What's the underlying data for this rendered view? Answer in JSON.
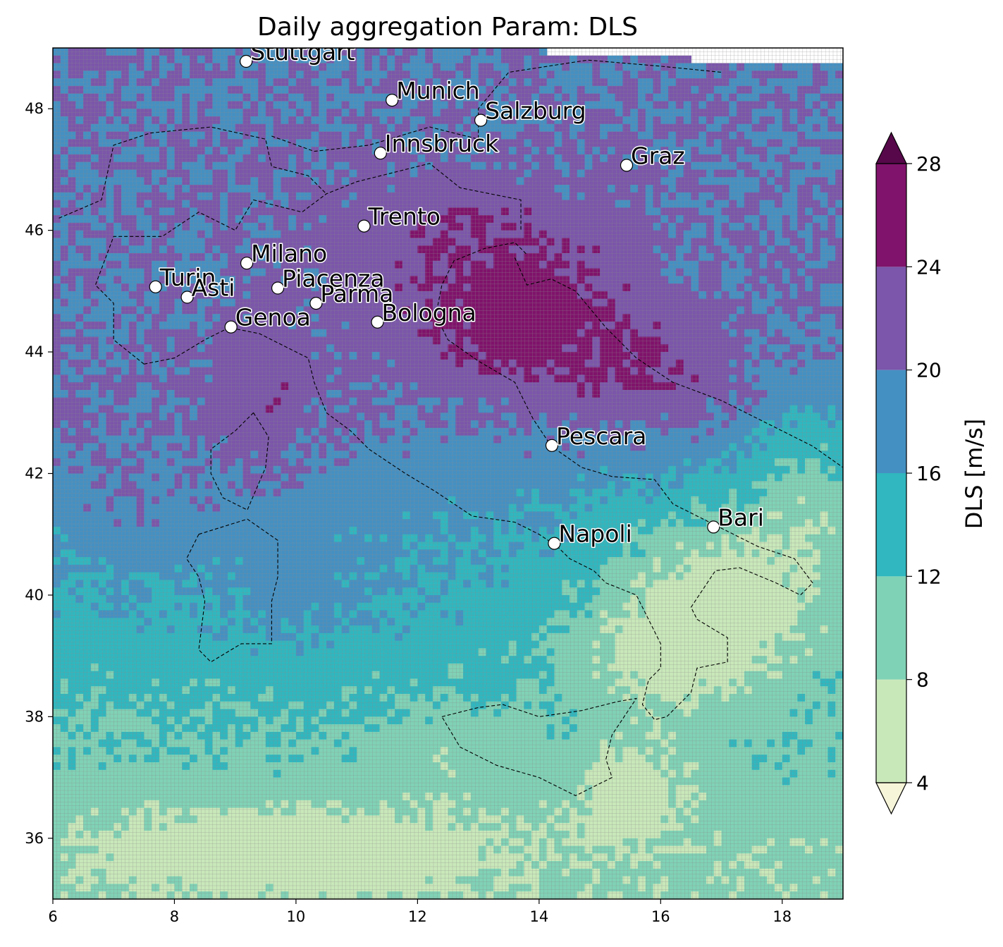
{
  "title": "Daily aggregation Param: DLS",
  "colors": {
    "band_4_8": "#c9e8ba",
    "band_8_12": "#80d2b6",
    "band_12_16": "#30b7bf",
    "band_16_20": "#4590c2",
    "band_20_24": "#7b56aa",
    "band_24_28": "#80136b",
    "under": "#f7f5d9",
    "over": "#56084a",
    "grid": "#8a8a8a",
    "coast": "#000000"
  },
  "chart_data": {
    "type": "heatmap",
    "title": "Daily aggregation Param: DLS",
    "xlim": [
      6,
      19
    ],
    "ylim": [
      35,
      49
    ],
    "x_ticks": [
      "6",
      "8",
      "10",
      "12",
      "14",
      "16",
      "18"
    ],
    "y_ticks": [
      "36",
      "38",
      "40",
      "42",
      "44",
      "46",
      "48"
    ],
    "colorbar": {
      "label": "DLS  [m/s]",
      "levels": [
        4,
        8,
        12,
        16,
        20,
        24,
        28
      ],
      "tick_labels": [
        "4",
        "8",
        "12",
        "16",
        "20",
        "24",
        "28"
      ],
      "extend": "both"
    },
    "cities": [
      {
        "name": "Stuttgart",
        "lon": 9.18,
        "lat": 48.78
      },
      {
        "name": "Munich",
        "lon": 11.58,
        "lat": 48.14
      },
      {
        "name": "Salzburg",
        "lon": 13.04,
        "lat": 47.81
      },
      {
        "name": "Innsbruck",
        "lon": 11.39,
        "lat": 47.27
      },
      {
        "name": "Graz",
        "lon": 15.44,
        "lat": 47.07
      },
      {
        "name": "Trento",
        "lon": 11.12,
        "lat": 46.07
      },
      {
        "name": "Milano",
        "lon": 9.19,
        "lat": 45.46
      },
      {
        "name": "Turin",
        "lon": 7.69,
        "lat": 45.07
      },
      {
        "name": "Asti",
        "lon": 8.21,
        "lat": 44.9
      },
      {
        "name": "Piacenza",
        "lon": 9.7,
        "lat": 45.05
      },
      {
        "name": "Parma",
        "lon": 10.33,
        "lat": 44.8
      },
      {
        "name": "Bologna",
        "lon": 11.34,
        "lat": 44.49
      },
      {
        "name": "Genoa",
        "lon": 8.93,
        "lat": 44.41
      },
      {
        "name": "Pescara",
        "lon": 14.21,
        "lat": 42.46
      },
      {
        "name": "Bari",
        "lon": 16.87,
        "lat": 41.12
      },
      {
        "name": "Napoli",
        "lon": 14.25,
        "lat": 40.85
      }
    ]
  }
}
